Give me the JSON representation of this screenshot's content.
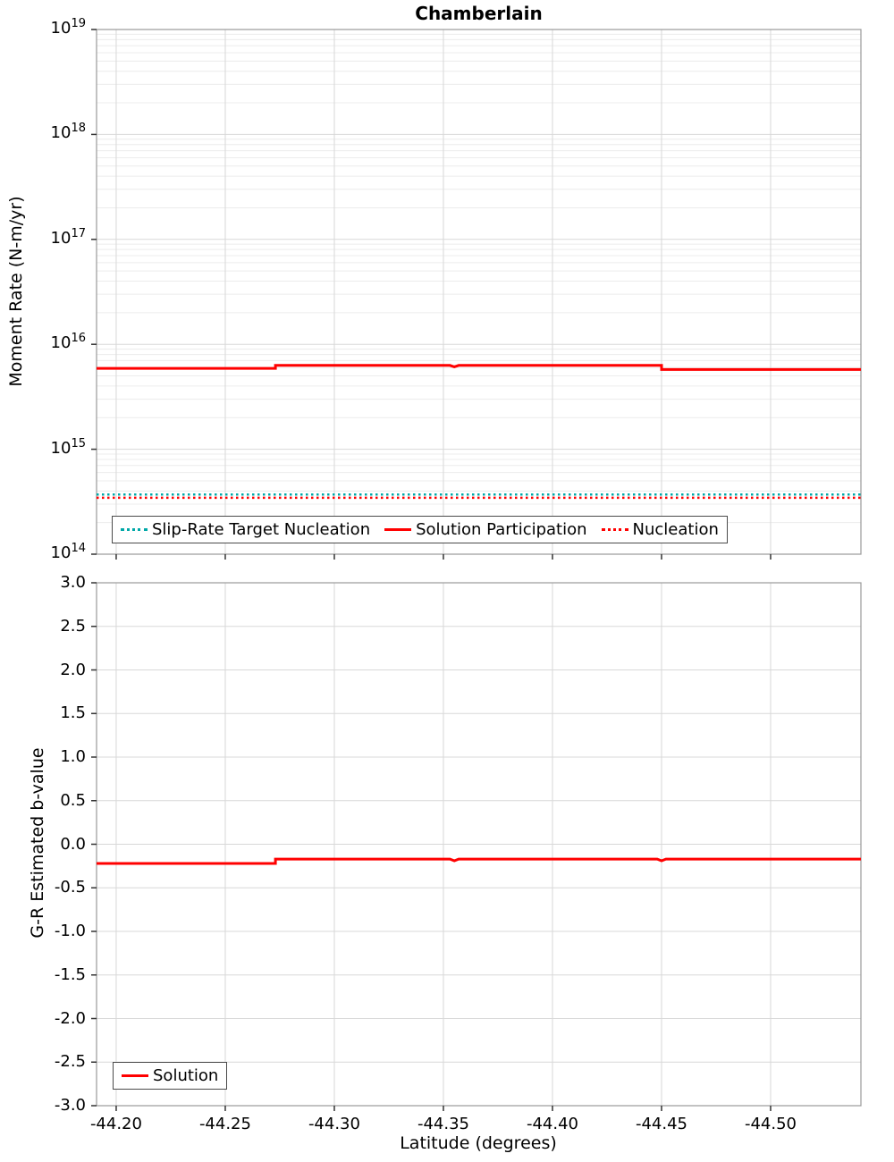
{
  "colors": {
    "red": "#ff0000",
    "teal": "#00a8a8",
    "grid_major": "#d8d8d8",
    "grid_minor": "#ececec",
    "axis": "#999999",
    "tick": "#333333",
    "background": "#ffffff"
  },
  "chart_data": [
    {
      "type": "line",
      "title": "Chamberlain",
      "ylabel": "Moment Rate (N-m/yr)",
      "yscale": "log",
      "ylim": [
        100000000000000.0,
        1e+19
      ],
      "xlim": [
        -44.191,
        -44.5414
      ],
      "x_reversed": true,
      "grid": true,
      "x_ticks": [
        -44.2,
        -44.25,
        -44.3,
        -44.35,
        -44.4,
        -44.45,
        -44.5
      ],
      "x_tick_labels": [],
      "y_tick_exponents": [
        14,
        15,
        16,
        17,
        18,
        19
      ],
      "legend_position": "bottom-center",
      "series": [
        {
          "name": "Slip-Rate Target Nucleation",
          "color": "#00a8a8",
          "style": "dotted",
          "width": 2.5,
          "points": [
            [
              -44.191,
              370000000000000.0
            ],
            [
              -44.5414,
              370000000000000.0
            ]
          ]
        },
        {
          "name": "Solution Participation",
          "color": "#ff0000",
          "style": "solid",
          "width": 3,
          "points": [
            [
              -44.191,
              5900000000000000.0
            ],
            [
              -44.273,
              5900000000000000.0
            ],
            [
              -44.273,
              6300000000000000.0
            ],
            [
              -44.353,
              6300000000000000.0
            ],
            [
              -44.355,
              6100000000000000.0
            ],
            [
              -44.357,
              6300000000000000.0
            ],
            [
              -44.45,
              6300000000000000.0
            ],
            [
              -44.45,
              5750000000000000.0
            ],
            [
              -44.5414,
              5750000000000000.0
            ]
          ]
        },
        {
          "name": "Nucleation",
          "color": "#ff0000",
          "style": "dotted",
          "width": 2.5,
          "points": [
            [
              -44.191,
              345000000000000.0
            ],
            [
              -44.5414,
              345000000000000.0
            ]
          ]
        }
      ]
    },
    {
      "type": "line",
      "title": "",
      "ylabel": "G-R Estimated b-value",
      "xlabel": "Latitude (degrees)",
      "yscale": "linear",
      "ylim": [
        -3.0,
        3.0
      ],
      "xlim": [
        -44.191,
        -44.5414
      ],
      "x_reversed": true,
      "grid": true,
      "x_ticks": [
        -44.2,
        -44.25,
        -44.3,
        -44.35,
        -44.4,
        -44.45,
        -44.5
      ],
      "x_tick_labels": [
        "-44.20",
        "-44.25",
        "-44.30",
        "-44.35",
        "-44.40",
        "-44.45",
        "-44.50"
      ],
      "y_tick_values": [
        3.0,
        2.5,
        2.0,
        1.5,
        1.0,
        0.5,
        0.0,
        -0.5,
        -1.0,
        -1.5,
        -2.0,
        -2.5,
        -3.0
      ],
      "y_tick_labels": [
        "3.0",
        "2.5",
        "2.0",
        "1.5",
        "1.0",
        "0.5",
        "0.0",
        "-0.5",
        "-1.0",
        "-1.5",
        "-2.0",
        "-2.5",
        "-3.0"
      ],
      "legend_position": "bottom-left",
      "series": [
        {
          "name": "Solution",
          "color": "#ff0000",
          "style": "solid",
          "width": 3,
          "points": [
            [
              -44.191,
              -0.22
            ],
            [
              -44.273,
              -0.22
            ],
            [
              -44.273,
              -0.17
            ],
            [
              -44.353,
              -0.17
            ],
            [
              -44.355,
              -0.19
            ],
            [
              -44.357,
              -0.17
            ],
            [
              -44.448,
              -0.17
            ],
            [
              -44.45,
              -0.19
            ],
            [
              -44.452,
              -0.17
            ],
            [
              -44.5414,
              -0.17
            ]
          ]
        }
      ]
    }
  ]
}
